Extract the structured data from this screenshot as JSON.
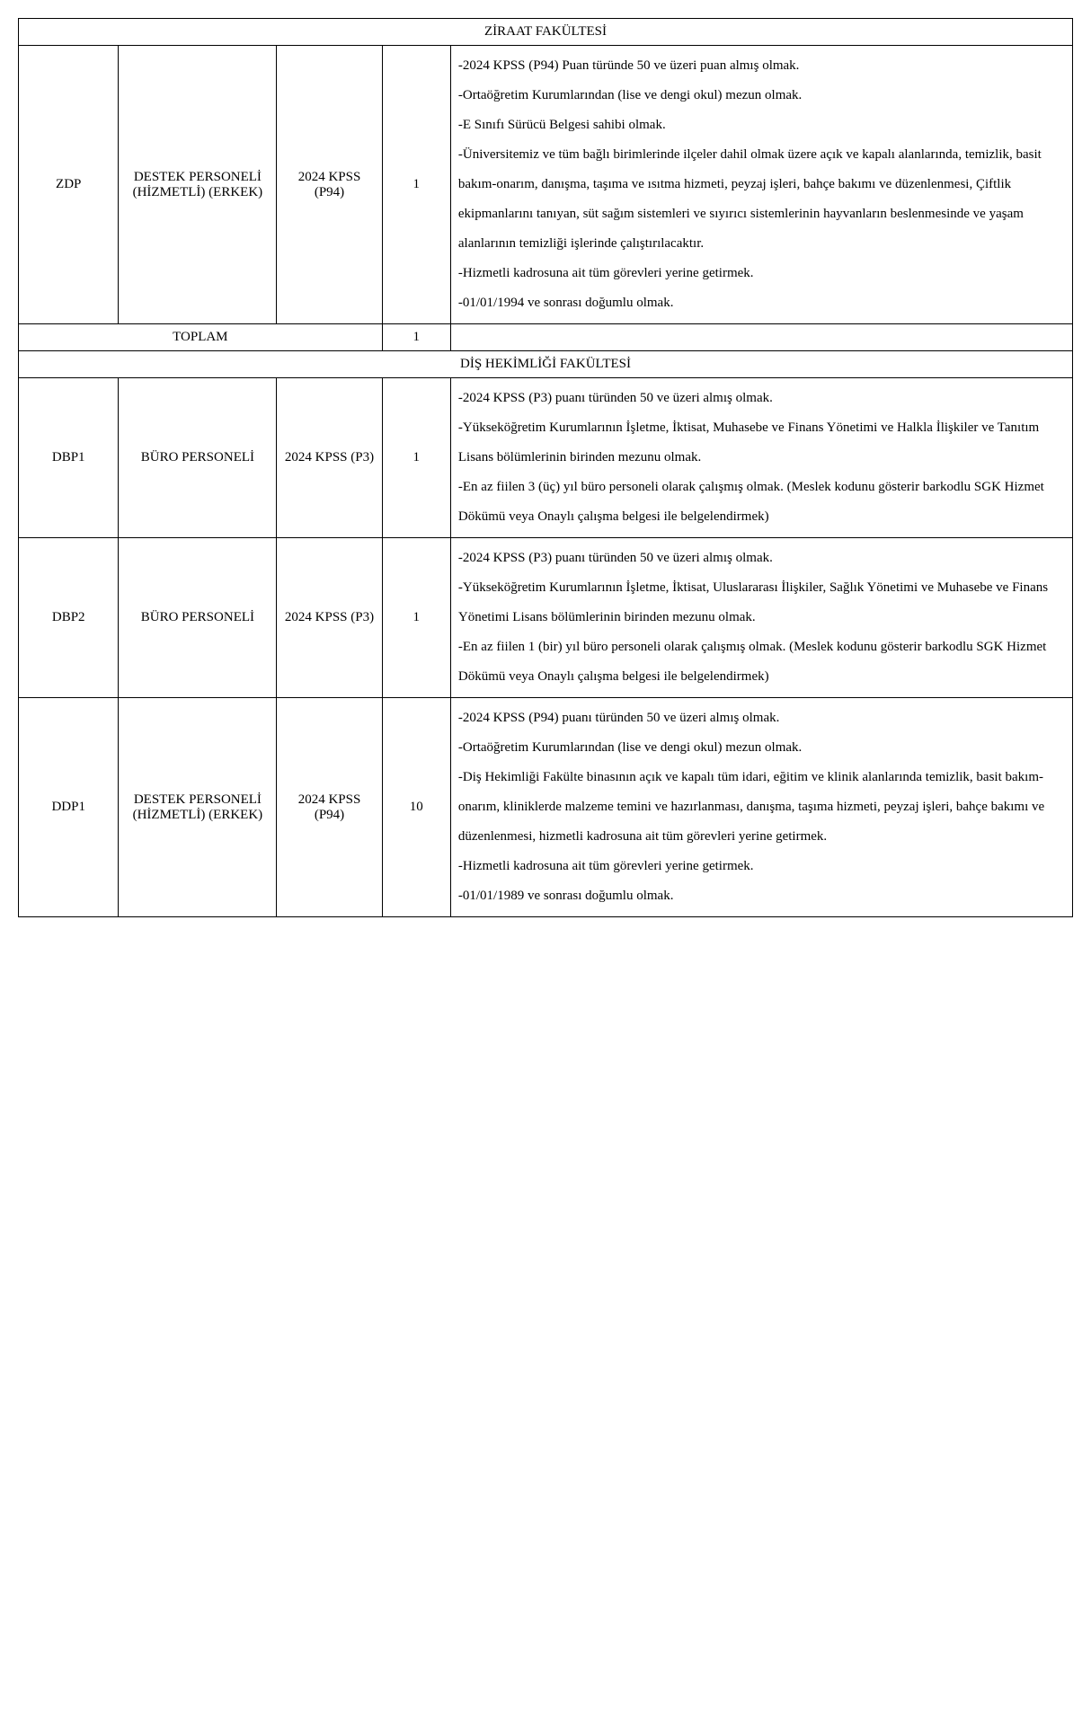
{
  "sections": [
    {
      "title": "ZİRAAT FAKÜLTESİ",
      "rows": [
        {
          "code": "ZDP",
          "position": "DESTEK PERSONELİ (HİZMETLİ) (ERKEK)",
          "exam": "2024 KPSS (P94)",
          "count": "1",
          "desc": "-2024 KPSS (P94) Puan türünde 50 ve üzeri puan almış olmak.\n-Ortaöğretim Kurumlarından (lise ve dengi okul) mezun olmak.\n-E Sınıfı Sürücü Belgesi sahibi olmak.\n-Üniversitemiz ve tüm bağlı birimlerinde ilçeler dahil olmak üzere açık ve kapalı alanlarında, temizlik, basit bakım-onarım, danışma, taşıma ve ısıtma hizmeti, peyzaj işleri, bahçe bakımı ve düzenlenmesi, Çiftlik ekipmanlarını tanıyan, süt sağım sistemleri ve sıyırıcı sistemlerinin hayvanların beslenmesinde ve yaşam alanlarının temizliği işlerinde çalıştırılacaktır.\n-Hizmetli kadrosuna ait tüm görevleri yerine getirmek.\n-01/01/1994 ve sonrası doğumlu olmak."
        }
      ],
      "total_label": "TOPLAM",
      "total_count": "1"
    },
    {
      "title": "DİŞ HEKİMLİĞİ FAKÜLTESİ",
      "rows": [
        {
          "code": "DBP1",
          "position": "BÜRO PERSONELİ",
          "exam": "2024 KPSS (P3)",
          "count": "1",
          "desc": "-2024 KPSS (P3) puanı türünden 50 ve üzeri almış olmak.\n-Yükseköğretim Kurumlarının İşletme, İktisat, Muhasebe ve Finans Yönetimi ve Halkla İlişkiler ve Tanıtım Lisans bölümlerinin birinden mezunu olmak.\n-En az fiilen 3 (üç) yıl büro personeli olarak çalışmış olmak. (Meslek kodunu gösterir barkodlu SGK Hizmet Dökümü veya Onaylı çalışma belgesi ile belgelendirmek)"
        },
        {
          "code": "DBP2",
          "position": "BÜRO PERSONELİ",
          "exam": "2024 KPSS (P3)",
          "count": "1",
          "desc": "-2024 KPSS (P3) puanı türünden 50 ve üzeri almış olmak.\n-Yükseköğretim Kurumlarının İşletme, İktisat, Uluslararası İlişkiler, Sağlık Yönetimi ve Muhasebe ve Finans Yönetimi Lisans bölümlerinin birinden mezunu olmak.\n-En az fiilen 1 (bir) yıl büro personeli olarak çalışmış olmak. (Meslek kodunu gösterir barkodlu SGK Hizmet Dökümü veya Onaylı çalışma belgesi ile belgelendirmek)"
        },
        {
          "code": "DDP1",
          "position": "DESTEK PERSONELİ (HİZMETLİ) (ERKEK)",
          "exam": "2024 KPSS (P94)",
          "count": "10",
          "desc": "-2024 KPSS (P94) puanı türünden 50 ve üzeri almış olmak.\n-Ortaöğretim Kurumlarından (lise ve dengi okul) mezun olmak.\n-Diş Hekimliği Fakülte binasının açık ve kapalı tüm idari, eğitim ve klinik alanlarında temizlik, basit bakım-onarım, kliniklerde malzeme temini ve hazırlanması, danışma, taşıma hizmeti, peyzaj işleri, bahçe bakımı ve düzenlenmesi, hizmetli kadrosuna ait tüm görevleri yerine getirmek.\n-Hizmetli kadrosuna ait tüm görevleri yerine getirmek.\n-01/01/1989 ve sonrası doğumlu olmak."
        }
      ]
    }
  ],
  "style": {
    "border_color": "#000000",
    "background_color": "#ffffff",
    "text_color": "#000000",
    "font_family": "Times New Roman",
    "font_size_pt": 12,
    "line_height_desc": 2.2
  }
}
